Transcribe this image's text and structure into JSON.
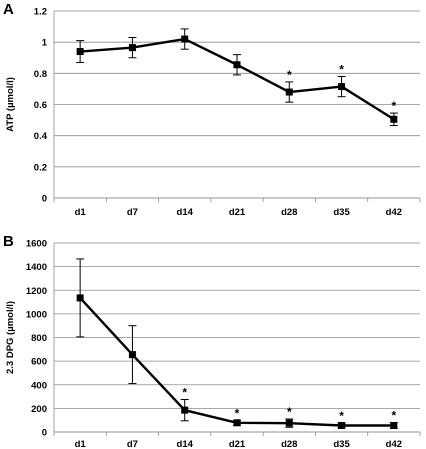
{
  "chart_data": [
    {
      "type": "line",
      "panel_label": "A",
      "ylabel": "ATP (µmol/l)",
      "categories": [
        "d1",
        "d7",
        "d14",
        "d21",
        "d28",
        "d35",
        "d42"
      ],
      "values": [
        0.94,
        0.965,
        1.02,
        0.855,
        0.68,
        0.715,
        0.505
      ],
      "errors": [
        0.07,
        0.065,
        0.065,
        0.065,
        0.065,
        0.065,
        0.04
      ],
      "significant": [
        false,
        false,
        false,
        false,
        true,
        true,
        true
      ],
      "significance_marker": "*",
      "ylim": [
        0,
        1.2
      ],
      "yticks": [
        0,
        0.2,
        0.4,
        0.6,
        0.8,
        1,
        1.2
      ],
      "ytick_labels": [
        "0",
        "0.2",
        "0.4",
        "0.6",
        "0.8",
        "1",
        "1.2"
      ],
      "grid": true,
      "legend": "none",
      "marker": "square",
      "line_color": "#000000"
    },
    {
      "type": "line",
      "panel_label": "B",
      "ylabel": "2.3 DPG (µmol/l)",
      "categories": [
        "d1",
        "d7",
        "d14",
        "d21",
        "d28",
        "d35",
        "d42"
      ],
      "values": [
        1135,
        655,
        185,
        78,
        75,
        55,
        55
      ],
      "errors": [
        330,
        245,
        90,
        20,
        35,
        20,
        25
      ],
      "significant": [
        false,
        false,
        true,
        true,
        true,
        true,
        true
      ],
      "significance_marker": "*",
      "ylim": [
        0,
        1600
      ],
      "yticks": [
        0,
        200,
        400,
        600,
        800,
        1000,
        1200,
        1400,
        1600
      ],
      "ytick_labels": [
        "0",
        "200",
        "400",
        "600",
        "800",
        "1000",
        "1200",
        "1400",
        "1600"
      ],
      "grid": true,
      "legend": "none",
      "marker": "square",
      "line_color": "#000000"
    }
  ]
}
